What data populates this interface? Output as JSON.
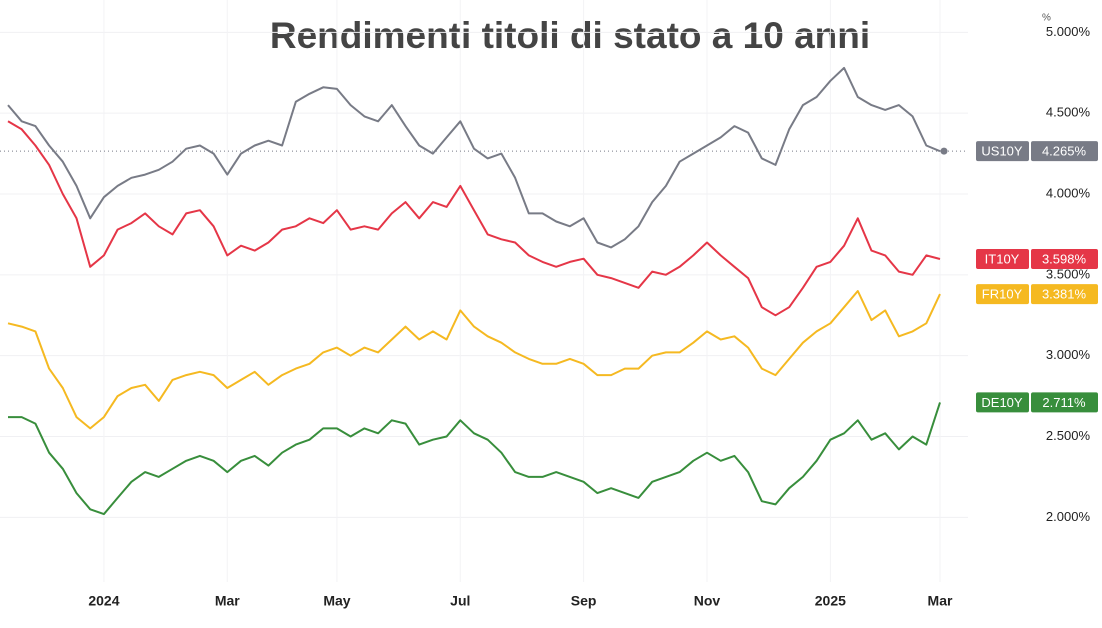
{
  "chart_data": {
    "type": "line",
    "title": "Rendimenti titoli di stato a 10 anni",
    "y_unit": "%",
    "categories": [
      null,
      null,
      null,
      null,
      null,
      null,
      null,
      "2024",
      null,
      null,
      null,
      null,
      null,
      null,
      null,
      null,
      "Mar",
      null,
      null,
      null,
      null,
      null,
      null,
      null,
      "May",
      null,
      null,
      null,
      null,
      null,
      null,
      null,
      null,
      "Jul",
      null,
      null,
      null,
      null,
      null,
      null,
      null,
      null,
      "Sep",
      null,
      null,
      null,
      null,
      null,
      null,
      null,
      null,
      "Nov",
      null,
      null,
      null,
      null,
      null,
      null,
      null,
      null,
      "2025",
      null,
      null,
      null,
      null,
      null,
      null,
      null,
      "Mar"
    ],
    "ylim": [
      1.6,
      5.2
    ],
    "yticks": [
      {
        "value": 2,
        "label": "2.000%"
      },
      {
        "value": 2.5,
        "label": "2.500%"
      },
      {
        "value": 3,
        "label": "3.000%"
      },
      {
        "value": 3.5,
        "label": "3.500%"
      },
      {
        "value": 4,
        "label": "4.000%"
      },
      {
        "value": 4.5,
        "label": "4.500%"
      },
      {
        "value": 5,
        "label": "5.000%"
      }
    ],
    "grid": true,
    "series": [
      {
        "name": "US10Y",
        "color": "#787b86",
        "values": [
          4.55,
          4.45,
          4.42,
          4.3,
          4.2,
          4.05,
          3.85,
          3.98,
          4.05,
          4.1,
          4.12,
          4.15,
          4.2,
          4.28,
          4.3,
          4.25,
          4.12,
          4.25,
          4.3,
          4.33,
          4.3,
          4.57,
          4.62,
          4.66,
          4.65,
          4.55,
          4.48,
          4.45,
          4.55,
          4.42,
          4.3,
          4.25,
          4.35,
          4.45,
          4.28,
          4.22,
          4.25,
          4.1,
          3.88,
          3.88,
          3.83,
          3.8,
          3.85,
          3.7,
          3.67,
          3.72,
          3.8,
          3.95,
          4.05,
          4.2,
          4.25,
          4.3,
          4.35,
          4.42,
          4.38,
          4.22,
          4.18,
          4.4,
          4.55,
          4.6,
          4.7,
          4.78,
          4.6,
          4.55,
          4.52,
          4.55,
          4.48,
          4.3,
          4.265
        ],
        "value_labels": [
          null,
          null,
          null,
          null,
          null,
          null,
          null,
          null,
          null,
          null,
          null,
          null,
          null,
          null,
          null,
          null,
          null,
          null,
          null,
          null,
          null,
          null,
          null,
          null,
          null,
          null,
          null,
          null,
          null,
          null,
          null,
          null,
          null,
          null,
          null,
          null,
          null,
          null,
          null,
          null,
          null,
          null,
          null,
          null,
          null,
          null,
          null,
          null,
          null,
          null,
          null,
          null,
          null,
          null,
          null,
          null,
          null,
          null,
          null,
          null,
          null,
          null,
          null,
          null,
          null,
          null,
          null,
          null,
          "4.265%"
        ]
      },
      {
        "name": "IT10Y",
        "color": "#e53647",
        "values": [
          4.45,
          4.4,
          4.3,
          4.18,
          4.0,
          3.85,
          3.55,
          3.62,
          3.78,
          3.82,
          3.88,
          3.8,
          3.75,
          3.88,
          3.9,
          3.8,
          3.62,
          3.68,
          3.65,
          3.7,
          3.78,
          3.8,
          3.85,
          3.82,
          3.9,
          3.78,
          3.8,
          3.78,
          3.88,
          3.95,
          3.85,
          3.95,
          3.92,
          4.05,
          3.9,
          3.75,
          3.72,
          3.7,
          3.62,
          3.58,
          3.55,
          3.58,
          3.6,
          3.5,
          3.48,
          3.45,
          3.42,
          3.52,
          3.5,
          3.55,
          3.62,
          3.7,
          3.62,
          3.55,
          3.48,
          3.3,
          3.25,
          3.3,
          3.42,
          3.55,
          3.58,
          3.68,
          3.85,
          3.65,
          3.62,
          3.52,
          3.5,
          3.62,
          3.598
        ],
        "value_labels": [
          null,
          null,
          null,
          null,
          null,
          null,
          null,
          null,
          null,
          null,
          null,
          null,
          null,
          null,
          null,
          null,
          null,
          null,
          null,
          null,
          null,
          null,
          null,
          null,
          null,
          null,
          null,
          null,
          null,
          null,
          null,
          null,
          null,
          null,
          null,
          null,
          null,
          null,
          null,
          null,
          null,
          null,
          null,
          null,
          null,
          null,
          null,
          null,
          null,
          null,
          null,
          null,
          null,
          null,
          null,
          null,
          null,
          null,
          null,
          null,
          null,
          null,
          null,
          null,
          null,
          null,
          null,
          null,
          "3.598%"
        ]
      },
      {
        "name": "FR10Y",
        "color": "#f5b921",
        "values": [
          3.2,
          3.18,
          3.15,
          2.92,
          2.8,
          2.62,
          2.55,
          2.62,
          2.75,
          2.8,
          2.82,
          2.72,
          2.85,
          2.88,
          2.9,
          2.88,
          2.8,
          2.85,
          2.9,
          2.82,
          2.88,
          2.92,
          2.95,
          3.02,
          3.05,
          3.0,
          3.05,
          3.02,
          3.1,
          3.18,
          3.1,
          3.15,
          3.1,
          3.28,
          3.18,
          3.12,
          3.08,
          3.02,
          2.98,
          2.95,
          2.95,
          2.98,
          2.95,
          2.88,
          2.88,
          2.92,
          2.92,
          3.0,
          3.02,
          3.02,
          3.08,
          3.15,
          3.1,
          3.12,
          3.05,
          2.92,
          2.88,
          2.98,
          3.08,
          3.15,
          3.2,
          3.3,
          3.4,
          3.22,
          3.28,
          3.12,
          3.15,
          3.2,
          3.381
        ],
        "value_labels": [
          null,
          null,
          null,
          null,
          null,
          null,
          null,
          null,
          null,
          null,
          null,
          null,
          null,
          null,
          null,
          null,
          null,
          null,
          null,
          null,
          null,
          null,
          null,
          null,
          null,
          null,
          null,
          null,
          null,
          null,
          null,
          null,
          null,
          null,
          null,
          null,
          null,
          null,
          null,
          null,
          null,
          null,
          null,
          null,
          null,
          null,
          null,
          null,
          null,
          null,
          null,
          null,
          null,
          null,
          null,
          null,
          null,
          null,
          null,
          null,
          null,
          null,
          null,
          null,
          null,
          null,
          null,
          null,
          "3.381%"
        ]
      },
      {
        "name": "DE10Y",
        "color": "#388e3c",
        "values": [
          2.62,
          2.62,
          2.58,
          2.4,
          2.3,
          2.15,
          2.05,
          2.02,
          2.12,
          2.22,
          2.28,
          2.25,
          2.3,
          2.35,
          2.38,
          2.35,
          2.28,
          2.35,
          2.38,
          2.32,
          2.4,
          2.45,
          2.48,
          2.55,
          2.55,
          2.5,
          2.55,
          2.52,
          2.6,
          2.58,
          2.45,
          2.48,
          2.5,
          2.6,
          2.52,
          2.48,
          2.4,
          2.28,
          2.25,
          2.25,
          2.28,
          2.25,
          2.22,
          2.15,
          2.18,
          2.15,
          2.12,
          2.22,
          2.25,
          2.28,
          2.35,
          2.4,
          2.35,
          2.38,
          2.28,
          2.1,
          2.08,
          2.18,
          2.25,
          2.35,
          2.48,
          2.52,
          2.6,
          2.48,
          2.52,
          2.42,
          2.5,
          2.45,
          2.711
        ],
        "value_labels": [
          null,
          null,
          null,
          null,
          null,
          null,
          null,
          null,
          null,
          null,
          null,
          null,
          null,
          null,
          null,
          null,
          null,
          null,
          null,
          null,
          null,
          null,
          null,
          null,
          null,
          null,
          null,
          null,
          null,
          null,
          null,
          null,
          null,
          null,
          null,
          null,
          null,
          null,
          null,
          null,
          null,
          null,
          null,
          null,
          null,
          null,
          null,
          null,
          null,
          null,
          null,
          null,
          null,
          null,
          null,
          null,
          null,
          null,
          null,
          null,
          null,
          null,
          null,
          null,
          null,
          null,
          null,
          null,
          "2.711%"
        ]
      }
    ]
  }
}
